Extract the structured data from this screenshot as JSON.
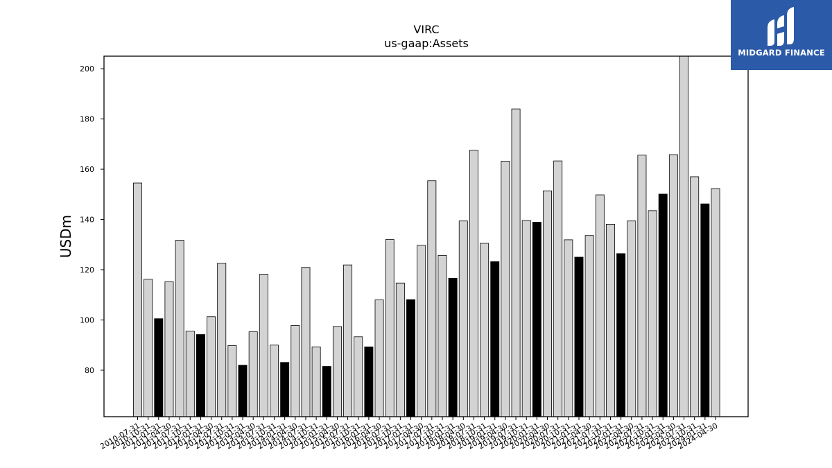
{
  "chart_data": {
    "type": "bar",
    "title": "VIRC",
    "subtitle": "us-gaap:Assets",
    "xlabel": "",
    "ylabel": "USDm",
    "ylim": [
      61.5,
      205
    ],
    "yticks": [
      80,
      100,
      120,
      140,
      160,
      180,
      200
    ],
    "grid": false,
    "categories": [
      "2010-07-31",
      "2010-10-31",
      "2011-01-31",
      "2011-04-30",
      "2011-07-31",
      "2011-10-31",
      "2012-01-31",
      "2012-04-30",
      "2012-07-31",
      "2012-10-31",
      "2013-01-31",
      "2013-04-30",
      "2013-07-31",
      "2013-10-31",
      "2014-01-31",
      "2014-04-30",
      "2014-07-31",
      "2014-10-31",
      "2015-01-31",
      "2015-04-30",
      "2015-07-31",
      "2015-10-31",
      "2016-01-31",
      "2016-04-30",
      "2016-07-31",
      "2016-10-31",
      "2017-01-31",
      "2017-04-30",
      "2017-07-31",
      "2017-10-31",
      "2018-01-31",
      "2018-04-30",
      "2018-07-31",
      "2018-10-31",
      "2019-01-31",
      "2019-04-30",
      "2019-07-31",
      "2019-10-31",
      "2020-01-31",
      "2020-04-30",
      "2020-07-31",
      "2020-10-31",
      "2021-01-31",
      "2021-04-30",
      "2021-07-31",
      "2021-10-31",
      "2022-01-31",
      "2022-04-30",
      "2022-07-31",
      "2022-10-31",
      "2023-01-31",
      "2023-04-30",
      "2023-07-31",
      "2023-10-31",
      "2024-01-31",
      "2024-04-30"
    ],
    "values": [
      154.5,
      116.2,
      100.5,
      115.2,
      131.7,
      95.6,
      94.2,
      101.3,
      122.6,
      89.8,
      82.0,
      95.3,
      118.2,
      90.0,
      83.1,
      97.8,
      120.9,
      89.3,
      81.5,
      97.4,
      121.9,
      93.3,
      89.3,
      108.0,
      132.0,
      114.7,
      108.1,
      129.7,
      155.4,
      125.7,
      116.6,
      139.4,
      167.6,
      130.5,
      123.2,
      163.2,
      184.0,
      139.6,
      138.9,
      151.4,
      163.3,
      131.9,
      125.0,
      133.6,
      149.8,
      138.1,
      126.4,
      139.4,
      165.6,
      143.5,
      150.1,
      165.8,
      205.0,
      157.0,
      146.2,
      152.3
    ],
    "highlight": [
      false,
      false,
      true,
      false,
      false,
      false,
      true,
      false,
      false,
      false,
      true,
      false,
      false,
      false,
      true,
      false,
      false,
      false,
      true,
      false,
      false,
      false,
      true,
      false,
      false,
      false,
      true,
      false,
      false,
      false,
      true,
      false,
      false,
      false,
      true,
      false,
      false,
      false,
      true,
      false,
      false,
      false,
      true,
      false,
      false,
      false,
      true,
      false,
      false,
      false,
      true,
      false,
      false,
      false,
      true,
      false
    ],
    "colors": {
      "bar": "#d3d3d3",
      "highlight": "#000000",
      "edge": "#000000"
    }
  },
  "logo": {
    "text": "MIDGARD FINANCE"
  }
}
